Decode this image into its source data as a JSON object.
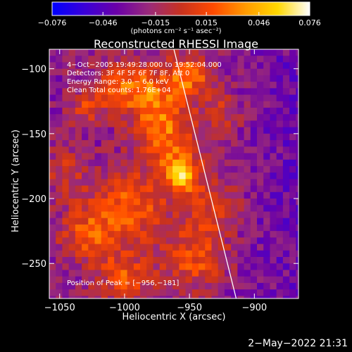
{
  "chart_data": {
    "type": "heatmap",
    "title": "Reconstructed RHESSI Image",
    "xlabel": "Heliocentric X (arcsec)",
    "ylabel": "Heliocentric Y (arcsec)",
    "xlim": [
      -1058,
      -866
    ],
    "ylim": [
      -277,
      -85
    ],
    "x_ticks": [
      {
        "value": -1050,
        "label": "−1050"
      },
      {
        "value": -1000,
        "label": "−1000"
      },
      {
        "value": -950,
        "label": "−950"
      },
      {
        "value": -900,
        "label": "−900"
      }
    ],
    "y_ticks": [
      {
        "value": -100,
        "label": "−100"
      },
      {
        "value": -150,
        "label": "−150"
      },
      {
        "value": -200,
        "label": "−200"
      },
      {
        "value": -250,
        "label": "−250"
      }
    ],
    "colorbar": {
      "min": -0.076,
      "max": 0.076,
      "ticks": [
        {
          "value": -0.076,
          "label": "−0.076"
        },
        {
          "value": -0.046,
          "label": "−0.046"
        },
        {
          "value": -0.015,
          "label": "−0.015"
        },
        {
          "value": 0.015,
          "label": "0.015"
        },
        {
          "value": 0.046,
          "label": "0.046"
        },
        {
          "value": 0.076,
          "label": "0.076"
        }
      ],
      "units": "(photons cm⁻² s⁻¹ asec⁻²)",
      "colors": [
        "#0000ff",
        "#3a00d8",
        "#6a00a8",
        "#9a2a7a",
        "#c8321f",
        "#ff4a00",
        "#ff9a00",
        "#ffd800",
        "#ffffff"
      ]
    },
    "annotations": {
      "time_range": "4−Oct−2005 19:49:28.000 to 19:52:04.000",
      "detectors": "Detectors: 3F 4F 5F 6F 7F 8F, Att 0",
      "energy_range": "Energy Range: 3.0 − 6.0 keV",
      "clean": "Clean     Total counts: 1.76E+04",
      "peak": "Position of Peak = [−956,−181]"
    },
    "peak": {
      "x": -956,
      "y": -181
    },
    "sources": [
      {
        "x": -956,
        "y": -181,
        "sigma": 10,
        "amp": 0.076
      },
      {
        "x": -968,
        "y": -150,
        "sigma": 16,
        "amp": 0.05
      },
      {
        "x": -980,
        "y": -120,
        "sigma": 14,
        "amp": 0.045
      },
      {
        "x": -950,
        "y": -105,
        "sigma": 12,
        "amp": 0.05
      },
      {
        "x": -1005,
        "y": -112,
        "sigma": 14,
        "amp": 0.035
      },
      {
        "x": -1030,
        "y": -130,
        "sigma": 10,
        "amp": 0.03
      },
      {
        "x": -995,
        "y": -205,
        "sigma": 20,
        "amp": 0.045
      },
      {
        "x": -1028,
        "y": -228,
        "sigma": 16,
        "amp": 0.04
      },
      {
        "x": -1000,
        "y": -262,
        "sigma": 14,
        "amp": 0.04
      },
      {
        "x": -945,
        "y": -245,
        "sigma": 18,
        "amp": 0.04
      },
      {
        "x": -930,
        "y": -205,
        "sigma": 14,
        "amp": 0.03
      },
      {
        "x": -925,
        "y": -135,
        "sigma": 12,
        "amp": 0.025
      },
      {
        "x": -1045,
        "y": -180,
        "sigma": 12,
        "amp": 0.025
      }
    ],
    "limb_line": [
      {
        "x": -962,
        "y": -85
      },
      {
        "x": -914,
        "y": -277
      }
    ]
  },
  "footer": {
    "timestamp": "2−May−2022 21:31"
  }
}
